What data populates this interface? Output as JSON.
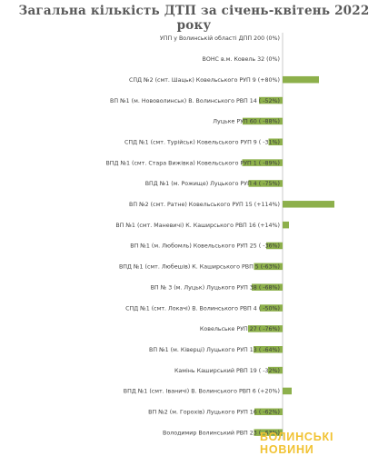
{
  "chart_data": {
    "type": "bar",
    "orientation": "horizontal",
    "title": "Загальна кількість ДТП  за  січень-квітень 2022 року",
    "categories": [
      "УПП у Волинській  області  ДПП 200 (0%)",
      "ВОНС в.м. Ковель 32 (0%)",
      "СПД №2 (смт.  Шацьк) Ковельського  РУП 9 (+80%)",
      "ВП №1 (м.  Нововолинськ)  В. Волинського   РВП 14 ( -52%)",
      "Луцьке РУП  60  ( -88%)",
      "СПД №1 (смт.  Турійськ) Ковельського  РУП 9 ( -31%)",
      "ВПД №1 (смт.  Стара Вижівка) Ковельського  РУП 1 ( -89%)",
      "ВПД №1 (м. Рожище)  Луцького РУП  4 ( -75%)",
      "ВП №2 (смт.  Ратне)  Ковельського  РУП  15 (+114%)",
      "ВП №1 (смт.  Маневичі)  К. Каширського  РВП 16 (+14%)",
      "ВП №1 (м.  Любомль)  Ковельського  РУП 25 ( -36%)",
      "ВПД №1 (смт.  Любешів) К. Каширського  РВП 5 (-63%)",
      "ВП № 3 (м. Луцьк) Луцького РУП  38 ( -68%)",
      "СПД №1 (смт. Локачі) В. Волинського  РВП  4 ( -50%)",
      "Ковельське  РУП 27 ( -76%)",
      "ВП №1 (м. Ківерці) Луцького РУП 13 ( -64%)",
      "Камінь Каширський   РВП 19 ( -32%)",
      "ВПД №1 (смт.  Іваничі) В. Волинського   РВП  6 (+20%)",
      "ВП №2 (м.  Горохів)  Луцького РУП 16  ( -62%)",
      "Володимир Волинський  РВП 23 ( -63%)"
    ],
    "values": [
      0,
      0,
      80,
      -52,
      -88,
      -31,
      -89,
      -75,
      114,
      14,
      -36,
      -63,
      -68,
      -50,
      -76,
      -64,
      -32,
      20,
      -62,
      -63
    ],
    "xlim": [
      -300,
      100
    ],
    "xticks": [
      "-300",
      "-200",
      "-100",
      "0",
      "100"
    ],
    "xlabel": "",
    "ylabel": "",
    "grid": false,
    "legend": "none",
    "colors": {
      "bar": "#8db04b",
      "axis": "#bfbfbf",
      "title": "#595959"
    }
  },
  "watermark": "ВОЛИНСЬКІ НОВИНИ"
}
